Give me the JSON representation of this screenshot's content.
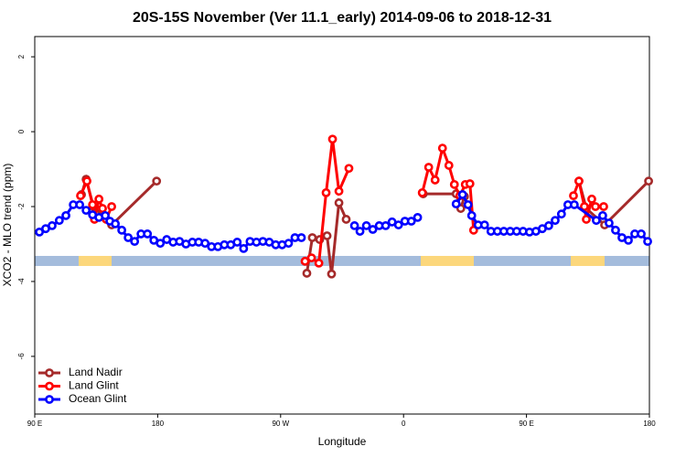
{
  "chart_data": {
    "type": "line",
    "title": "20S-15S November (Ver 11.1_early)   2014-09-06 to 2018-12-31",
    "x_label": "Longitude",
    "y_label": "XCO2 - MLO trend (ppm)",
    "xlim": [
      90,
      540
    ],
    "xticks": [
      {
        "value": 90,
        "label": "90 E"
      },
      {
        "value": 180,
        "label": "180"
      },
      {
        "value": 270,
        "label": "90 W"
      },
      {
        "value": 360,
        "label": "0"
      },
      {
        "value": 450,
        "label": "90 E"
      },
      {
        "value": 540,
        "label": "180"
      }
    ],
    "ylim": [
      -7.54,
      2.54
    ],
    "yticks": [
      -6,
      -4,
      -2,
      0,
      2
    ],
    "legend": "bottom-left",
    "series": [
      {
        "name": "Land Nadir",
        "color": "#a52a2a",
        "x": [
          124.2,
          127.6,
          133,
          146.3,
          179.2,
          200,
          289.2,
          293.2,
          298.6,
          304,
          307.3,
          312.7,
          318,
          340,
          374.4,
          398.5,
          401.9,
          404.6,
          450,
          488.4,
          493.8,
          507.2,
          539.4
        ],
        "values": [
          -1.68,
          -1.27,
          -2.0,
          -2.49,
          -1.32,
          null,
          -3.78,
          -2.83,
          -2.88,
          -2.78,
          -3.8,
          -1.9,
          -2.34,
          null,
          -1.66,
          -1.66,
          -2.05,
          -1.73,
          null,
          -1.32,
          -2.05,
          -2.49,
          -1.32
        ]
      },
      {
        "name": "Land Glint",
        "color": "#ff0000",
        "x": [
          123.5,
          128.2,
          132.3,
          133.7,
          137,
          139.6,
          142.3,
          146.3,
          200,
          287.9,
          292.6,
          298,
          303.3,
          308,
          312.7,
          320,
          340,
          373.7,
          378.4,
          383.1,
          388.5,
          393.2,
          397.2,
          401.2,
          405.2,
          408.6,
          411.3,
          450,
          484.4,
          488.4,
          492.4,
          493.8,
          497.8,
          500.5,
          506.5
        ],
        "values": [
          -1.71,
          -1.32,
          -1.95,
          -2.34,
          -1.8,
          -2.05,
          -2.34,
          -2.0,
          null,
          -3.46,
          -3.37,
          -3.51,
          -1.63,
          -0.2,
          -1.59,
          -0.98,
          null,
          -1.63,
          -0.95,
          -1.29,
          -0.44,
          -0.9,
          -1.41,
          -1.71,
          -1.41,
          -1.39,
          -2.63,
          null,
          -1.71,
          -1.32,
          -2.0,
          -2.34,
          -1.8,
          -2.0,
          -2.0
        ]
      },
      {
        "name": "Ocean Glint",
        "color": "#0000ff",
        "x": [
          93.4,
          98,
          102.7,
          108,
          112.8,
          118.2,
          122.9,
          127.6,
          132.3,
          137,
          141.6,
          145,
          149,
          153.7,
          158.4,
          163.1,
          167.8,
          172.5,
          177.2,
          181.9,
          186.6,
          191.3,
          196,
          200.7,
          205.4,
          210,
          214.7,
          219.4,
          224.1,
          228.8,
          233.5,
          238.2,
          242.9,
          247.6,
          252.3,
          257,
          261.7,
          266.4,
          271.1,
          275.8,
          280.5,
          285.2,
          305,
          324.1,
          328.1,
          332.8,
          337.5,
          342.2,
          346.9,
          351.6,
          356.3,
          361,
          365.7,
          370.3,
          380,
          398.5,
          403.2,
          407.2,
          409.9,
          414.6,
          419.3,
          424,
          428.7,
          433.4,
          438.1,
          442.8,
          447.5,
          452.2,
          456.9,
          461.6,
          466.3,
          471,
          475.6,
          480.3,
          485,
          501.1,
          505.8,
          510.5,
          515.2,
          519.9,
          524.6,
          529.3,
          534,
          538.7
        ],
        "values": [
          -2.68,
          -2.59,
          -2.51,
          -2.37,
          -2.24,
          -1.95,
          -1.95,
          -2.1,
          -2.22,
          -2.29,
          -2.24,
          -2.39,
          -2.46,
          -2.63,
          -2.83,
          -2.93,
          -2.73,
          -2.73,
          -2.9,
          -2.98,
          -2.88,
          -2.95,
          -2.93,
          -3.0,
          -2.95,
          -2.95,
          -2.98,
          -3.07,
          -3.07,
          -3.02,
          -3.02,
          -2.95,
          -3.12,
          -2.93,
          -2.95,
          -2.93,
          -2.95,
          -3.02,
          -3.02,
          -2.98,
          -2.83,
          -2.83,
          null,
          -2.51,
          -2.66,
          -2.51,
          -2.61,
          -2.51,
          -2.51,
          -2.41,
          -2.49,
          -2.39,
          -2.39,
          -2.29,
          null,
          -1.93,
          -1.68,
          -1.95,
          -2.24,
          -2.49,
          -2.49,
          -2.66,
          -2.66,
          -2.66,
          -2.66,
          -2.66,
          -2.66,
          -2.68,
          -2.66,
          -2.59,
          -2.51,
          -2.37,
          -2.2,
          -1.95,
          -1.95,
          -2.37,
          -2.24,
          -2.44,
          -2.63,
          -2.83,
          -2.9,
          -2.73,
          -2.73,
          -2.93
        ]
      }
    ]
  }
}
